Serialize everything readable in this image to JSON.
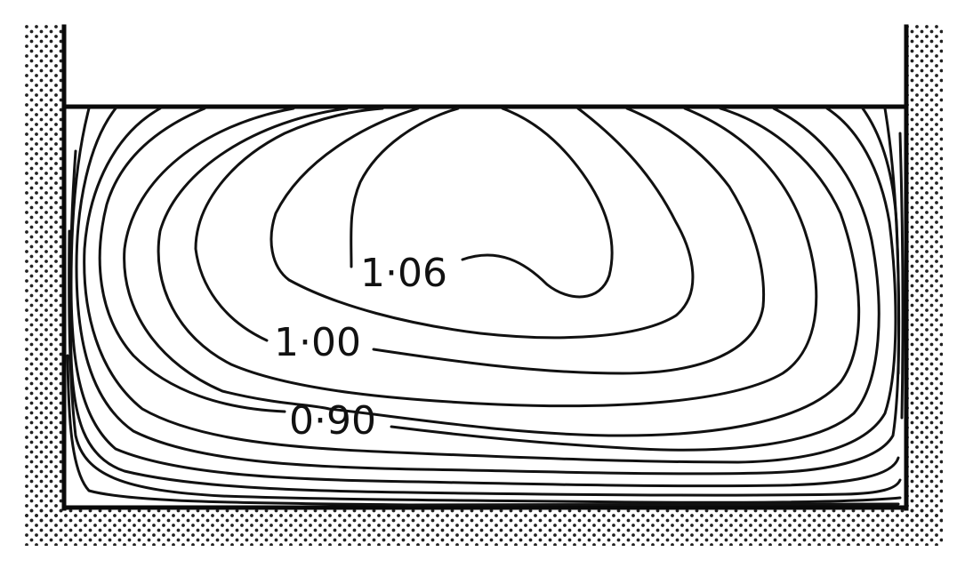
{
  "figure": {
    "description_visible_labels_only": true,
    "contour_labels": [
      "1·06",
      "1·00",
      "0·90"
    ],
    "colors": {
      "ink": "#111111",
      "background": "#ffffff",
      "stipple": "#222222"
    }
  }
}
